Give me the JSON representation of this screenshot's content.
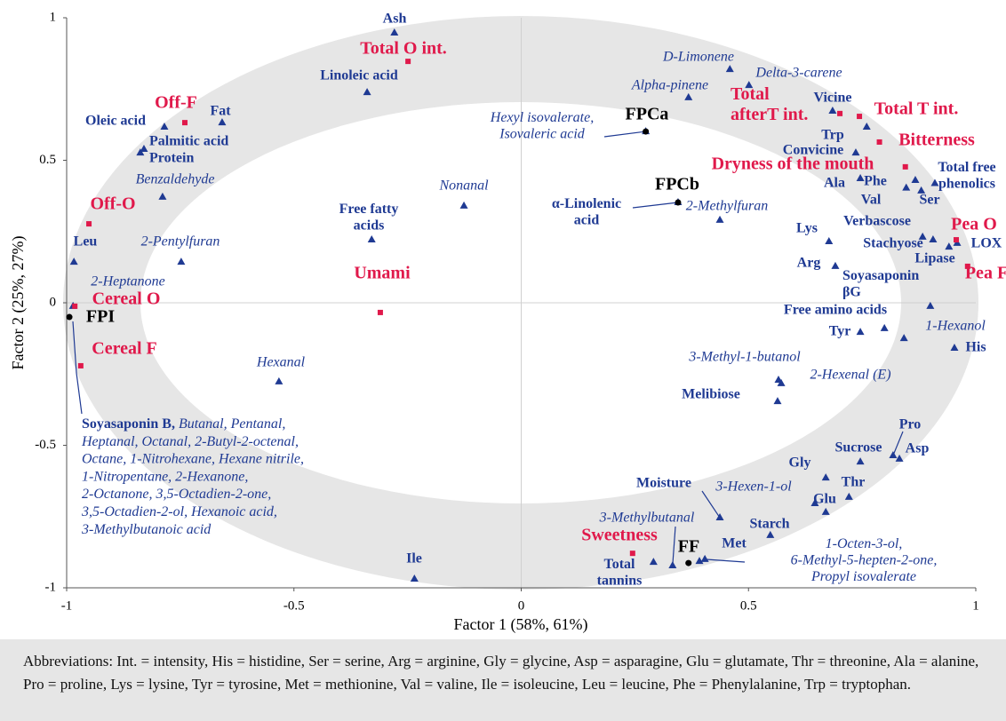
{
  "chart_data": {
    "type": "scatter",
    "xlabel": "Factor 1 (58%, 61%)",
    "ylabel": "Factor 2 (25%, 27%)",
    "xlim": [
      -1,
      1
    ],
    "ylim": [
      -1,
      1
    ],
    "xticks": [
      -1,
      -0.5,
      0,
      0.5,
      1
    ],
    "yticks": [
      -1,
      -0.5,
      0,
      0.5,
      1
    ],
    "series": [
      {
        "color": "#1f3a93",
        "marker": "triangle",
        "font": "bold",
        "labels": [
          "Ash",
          "Linoleic acid",
          "Oleic acid",
          "Fat",
          "Palmitic acid",
          "Protein",
          "Leu",
          [
            "Free fatty",
            "acids"
          ],
          [
            "α-Linolenic",
            "acid"
          ],
          "Vicine",
          "Trp",
          "Convicine",
          "Ala",
          "Phe",
          "Val",
          "Ser",
          [
            "Total free",
            "phenolics"
          ],
          "Verbascose",
          "Lys",
          "Stachyose",
          "Lipase",
          "LOX",
          "Arg",
          [
            "Soyasaponin",
            "βG"
          ],
          "Free amino acids",
          "Tyr",
          "His",
          "Melibiose",
          "Pro",
          "Asp",
          "Sucrose",
          "Gly",
          "Thr",
          "Glu",
          "Moisture",
          "Starch",
          "Met",
          [
            "Total",
            "tannins"
          ],
          "Ile"
        ],
        "x": [
          -0.279,
          -0.339,
          -0.785,
          -0.658,
          -0.83,
          -0.838,
          -0.984,
          -0.329,
          0.345,
          0.685,
          0.76,
          0.736,
          0.746,
          0.867,
          0.847,
          0.88,
          0.91,
          0.883,
          0.677,
          0.906,
          0.941,
          0.959,
          0.691,
          0.9,
          0.799,
          0.746,
          0.953,
          0.564,
          0.818,
          0.832,
          0.746,
          0.67,
          0.721,
          0.67,
          0.437,
          0.548,
          0.392,
          0.291,
          -0.235
        ],
        "y": [
          0.947,
          0.738,
          0.617,
          0.632,
          0.539,
          0.526,
          0.143,
          0.221,
          0.352,
          0.673,
          0.617,
          0.526,
          0.436,
          0.43,
          0.403,
          0.393,
          0.419,
          0.231,
          0.215,
          0.221,
          0.196,
          0.209,
          0.128,
          -0.012,
          -0.09,
          -0.103,
          -0.159,
          -0.346,
          -0.536,
          -0.548,
          -0.558,
          -0.614,
          -0.682,
          -0.735,
          -0.754,
          -0.816,
          -0.907,
          -0.91,
          -0.969
        ]
      },
      {
        "color": "#1f3a93",
        "marker": "triangle",
        "font": "italic",
        "labels": [
          "D-Limonene",
          "Delta-3-carene",
          "Alpha-pinene",
          [
            "Hexyl isovalerate,",
            "Isovaleric acid"
          ],
          "Nonanal",
          "Benzaldehyde",
          "2-Pentylfuran",
          "2-Methylfuran",
          "2-Heptanone",
          "Hexanal",
          "1-Hexanol",
          "3-Methyl-1-butanol",
          "2-Hexenal (E)",
          "3-Hexen-1-ol",
          "3-Methylbutanal",
          [
            "1-Octen-3-ol,",
            "6-Methyl-5-hepten-2-one,",
            "Propyl isovalerate"
          ]
        ],
        "x": [
          0.459,
          0.501,
          0.368,
          0.274,
          -0.126,
          -0.789,
          -0.748,
          0.437,
          -0.986,
          -0.533,
          0.842,
          0.566,
          0.572,
          0.646,
          0.333,
          0.404
        ],
        "y": [
          0.819,
          0.763,
          0.72,
          0.601,
          0.34,
          0.371,
          0.143,
          0.29,
          -0.012,
          -0.277,
          -0.125,
          -0.271,
          -0.283,
          -0.704,
          -0.922,
          -0.9
        ]
      },
      {
        "color": "#e0194b",
        "marker": "square",
        "font": "red",
        "labels": [
          "Total O int.",
          "Off-F",
          "Off-O",
          "Umami",
          "Cereal O",
          "Cereal F",
          [
            "Total",
            "afterT int."
          ],
          "Total T int.",
          "Bitterness",
          "Dryness of the mouth",
          "Pea O",
          "Pea F",
          "Sweetness"
        ],
        "x": [
          -0.249,
          -0.74,
          -0.951,
          -0.31,
          -0.982,
          -0.969,
          0.701,
          0.744,
          0.788,
          0.845,
          0.957,
          0.982,
          0.245
        ],
        "y": [
          0.847,
          0.632,
          0.277,
          -0.034,
          -0.012,
          -0.221,
          0.664,
          0.654,
          0.564,
          0.477,
          0.221,
          0.128,
          -0.879
        ]
      },
      {
        "color": "#000000",
        "marker": "circle",
        "font": "sample",
        "labels": [
          "FPCa",
          "FPCb",
          "FPI",
          "FF"
        ],
        "x": [
          0.274,
          0.345,
          -0.994,
          0.368
        ],
        "y": [
          0.601,
          0.352,
          -0.05,
          -0.913
        ]
      }
    ],
    "note": {
      "lead": "Soyasaponin B,",
      "lines": [
        "Butanal, Pentanal,",
        "Heptanal, Octanal, 2-Butyl-2-octenal,",
        "Octane, 1-Nitrohexane, Hexane nitrile,",
        "1-Nitropentane, 2-Hexanone,",
        "2-Octanone, 3,5-Octadien-2-one,",
        "3,5-Octadien-2-ol, Hexanoic acid,",
        "3-Methylbutanoic acid"
      ]
    },
    "footnote": "Abbreviations: Int. = intensity, His = histidine, Ser = serine, Arg = arginine, Gly = glycine, Asp = asparagine, Glu = glutamate, Thr = threonine, Ala = alanine, Pro = proline, Lys = lysine, Tyr = tyrosine, Met = methionine, Val = valine, Ile = isoleucine, Leu = leucine, Phe = Phenylalanine, Trp = tryptophan."
  }
}
